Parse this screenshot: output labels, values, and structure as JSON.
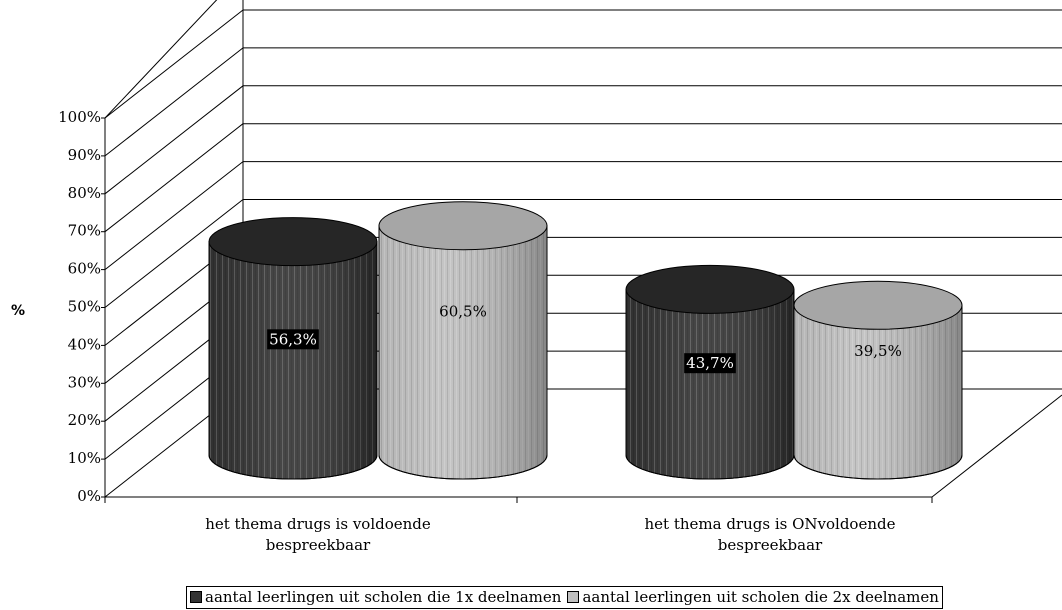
{
  "chart_data": {
    "type": "bar",
    "ylabel": "%",
    "categories": [
      "het thema drugs is voldoende bespreekbaar",
      "het thema drugs is ONvoldoende bespreekbaar"
    ],
    "series": [
      {
        "name": "aantal leerlingen uit scholen die 1x deelnamen",
        "color": "#333333",
        "values": [
          56.3,
          43.7
        ],
        "value_labels": [
          "56,3%",
          "43,7%"
        ]
      },
      {
        "name": "aantal leerlingen uit scholen die 2x deelnamen",
        "color": "#c0c0c0",
        "values": [
          60.5,
          39.5
        ],
        "value_labels": [
          "60,5%",
          "39,5%"
        ]
      }
    ],
    "ylim": [
      0,
      100
    ],
    "yticks": [
      {
        "value": 0,
        "label": "0%"
      },
      {
        "value": 10,
        "label": "10%"
      },
      {
        "value": 20,
        "label": "20%"
      },
      {
        "value": 30,
        "label": "30%"
      },
      {
        "value": 40,
        "label": "40%"
      },
      {
        "value": 50,
        "label": "50%"
      },
      {
        "value": 60,
        "label": "60%"
      },
      {
        "value": 70,
        "label": "70%"
      },
      {
        "value": 80,
        "label": "80%"
      },
      {
        "value": 90,
        "label": "90%"
      },
      {
        "value": 100,
        "label": "100%"
      }
    ],
    "grid": true
  }
}
